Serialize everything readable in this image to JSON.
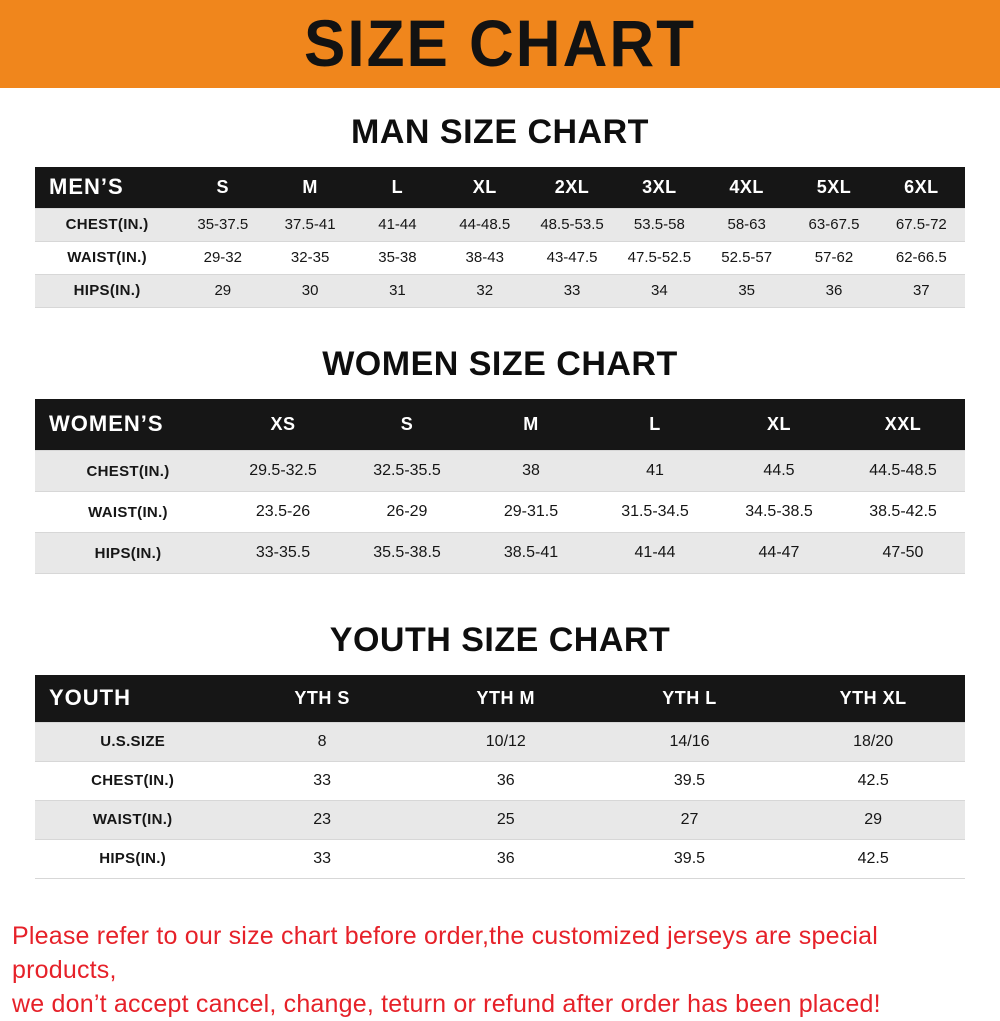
{
  "banner": {
    "title": "SIZE CHART"
  },
  "colors": {
    "banner_bg": "#F0861C",
    "header_bg": "#161616",
    "stripe": "#E8E8E8",
    "note_red": "#E62129"
  },
  "sections": [
    {
      "heading": "MAN SIZE CHART",
      "table": {
        "header": [
          "MEN’S",
          "S",
          "M",
          "L",
          "XL",
          "2XL",
          "3XL",
          "4XL",
          "5XL",
          "6XL"
        ],
        "rows": [
          {
            "label": "CHEST(IN.)",
            "values": [
              "35-37.5",
              "37.5-41",
              "41-44",
              "44-48.5",
              "48.5-53.5",
              "53.5-58",
              "58-63",
              "63-67.5",
              "67.5-72"
            ]
          },
          {
            "label": "WAIST(IN.)",
            "values": [
              "29-32",
              "32-35",
              "35-38",
              "38-43",
              "43-47.5",
              "47.5-52.5",
              "52.5-57",
              "57-62",
              "62-66.5"
            ]
          },
          {
            "label": "HIPS(IN.)",
            "values": [
              "29",
              "30",
              "31",
              "32",
              "33",
              "34",
              "35",
              "36",
              "37"
            ]
          }
        ]
      }
    },
    {
      "heading": "WOMEN SIZE CHART",
      "table": {
        "header": [
          "WOMEN’S",
          "XS",
          "S",
          "M",
          "L",
          "XL",
          "XXL"
        ],
        "rows": [
          {
            "label": "CHEST(IN.)",
            "values": [
              "29.5-32.5",
              "32.5-35.5",
              "38",
              "41",
              "44.5",
              "44.5-48.5"
            ]
          },
          {
            "label": "WAIST(IN.)",
            "values": [
              "23.5-26",
              "26-29",
              "29-31.5",
              "31.5-34.5",
              "34.5-38.5",
              "38.5-42.5"
            ]
          },
          {
            "label": "HIPS(IN.)",
            "values": [
              "33-35.5",
              "35.5-38.5",
              "38.5-41",
              "41-44",
              "44-47",
              "47-50"
            ]
          }
        ]
      }
    },
    {
      "heading": "YOUTH SIZE CHART",
      "table": {
        "header": [
          "YOUTH",
          "YTH S",
          "YTH M",
          "YTH L",
          "YTH XL"
        ],
        "rows": [
          {
            "label": "U.S.SIZE",
            "values": [
              "8",
              "10/12",
              "14/16",
              "18/20"
            ]
          },
          {
            "label": "CHEST(IN.)",
            "values": [
              "33",
              "36",
              "39.5",
              "42.5"
            ]
          },
          {
            "label": "WAIST(IN.)",
            "values": [
              "23",
              "25",
              "27",
              "29"
            ]
          },
          {
            "label": "HIPS(IN.)",
            "values": [
              "33",
              "36",
              "39.5",
              "42.5"
            ]
          }
        ]
      }
    }
  ],
  "note": {
    "line1": "Please refer to our size chart before order,the customized jerseys are special products,",
    "line2": "we don’t accept cancel, change, teturn or refund after order has been placed!"
  }
}
